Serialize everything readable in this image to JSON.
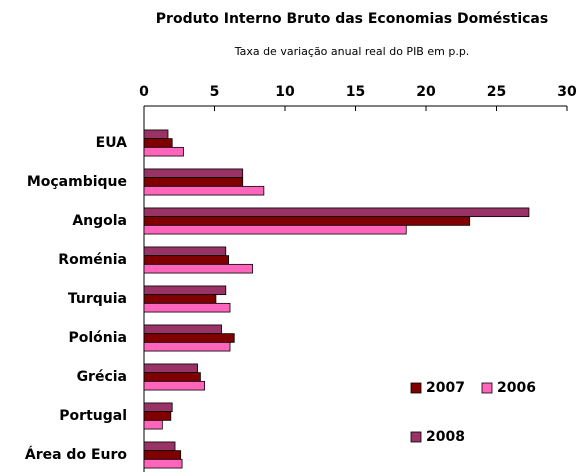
{
  "chart_data": {
    "type": "barh",
    "title": "Produto Interno Bruto das Economias Domésticas",
    "subtitle": "Taxa de variação anual real do PIB em p.p.",
    "categories": [
      "EUA",
      "Moçambique",
      "Angola",
      "Roménia",
      "Turquia",
      "Polónia",
      "Grécia",
      "Portugal",
      "Área do Euro"
    ],
    "series": [
      {
        "name": "2008",
        "color": "#993366",
        "values": [
          1.7,
          7.0,
          27.3,
          5.8,
          5.8,
          5.5,
          3.8,
          2.0,
          2.2
        ]
      },
      {
        "name": "2007",
        "color": "#800000",
        "values": [
          2.0,
          7.0,
          23.1,
          6.0,
          5.1,
          6.4,
          4.0,
          1.9,
          2.6
        ]
      },
      {
        "name": "2006",
        "color": "#ff66bb",
        "values": [
          2.8,
          8.5,
          18.6,
          7.7,
          6.1,
          6.1,
          4.3,
          1.3,
          2.7
        ]
      }
    ],
    "xlim": [
      0,
      30
    ],
    "xticks": [
      0,
      5,
      10,
      15,
      20,
      25,
      30
    ],
    "grid": false,
    "legend": "lower right"
  }
}
